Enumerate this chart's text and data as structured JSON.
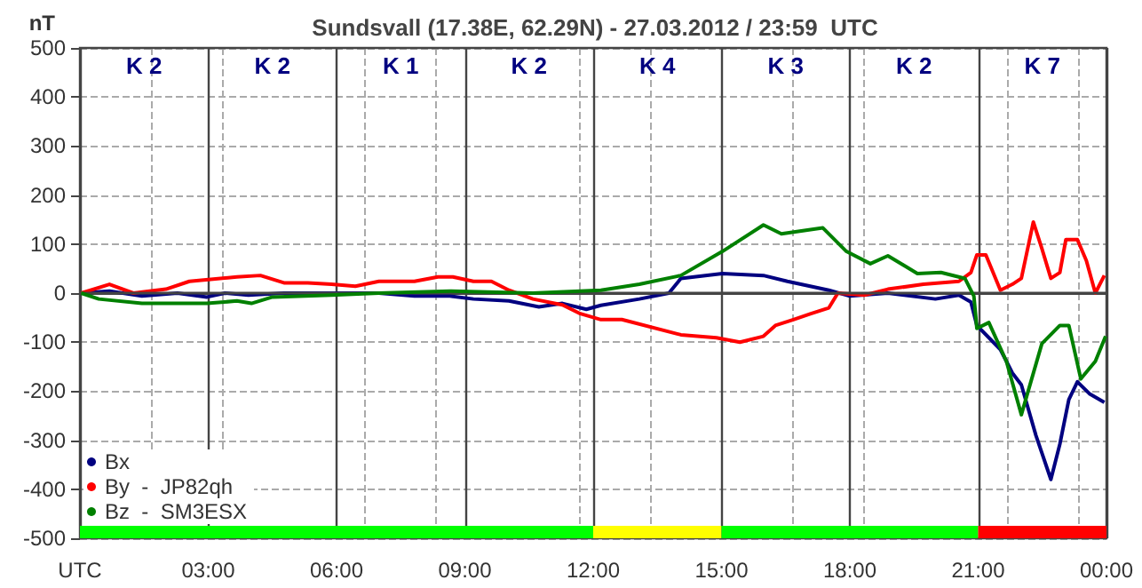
{
  "chart_data": [
    {
      "type": "line",
      "title": "Sundsvall (17.38E, 62.29N) - 27.03.2012 / 23:59  UTC",
      "ylabel": "nT",
      "xlim": [
        0,
        24
      ],
      "xticks": [
        {
          "value": 0,
          "label": null
        },
        {
          "value": 3,
          "label": null
        },
        {
          "value": 6,
          "label": null
        },
        {
          "value": 9,
          "label": null
        },
        {
          "value": 12,
          "label": null
        },
        {
          "value": 15,
          "label": null
        },
        {
          "value": 18,
          "label": null
        },
        {
          "value": 21,
          "label": null
        },
        {
          "value": 24,
          "label": null
        }
      ],
      "ylim": [
        -500,
        500
      ],
      "yticks": [
        -500,
        -400,
        -300,
        -200,
        -100,
        0,
        100,
        200,
        300,
        400,
        500
      ],
      "grid": true,
      "legend": "bottom left",
      "marker": "none",
      "line_style": "solid",
      "tick_labels": "y",
      "annotations": [
        "K 2",
        "K 2",
        "K 1",
        "K 2",
        "K 4",
        "K 3",
        "K 2",
        "K 7"
      ],
      "ref_lines": [
        {
          "axis": "y",
          "value": 0,
          "label": null
        }
      ],
      "series": [
        {
          "name": "Bx",
          "color": "#000080",
          "x": [
            0.03,
            0.69,
            1.45,
            2.28,
            2.97,
            3.39,
            3.94,
            4.77,
            5.88,
            6.99,
            7.82,
            8.65,
            9.2,
            10.03,
            10.73,
            11.28,
            11.84,
            12.18,
            13.08,
            13.77,
            14.05,
            15.02,
            15.98,
            16.54,
            17.51,
            18.0,
            18.89,
            20.0,
            20.55,
            20.83,
            20.97,
            21.52,
            21.8,
            22.01,
            22.35,
            22.7,
            22.91,
            23.12,
            23.32,
            23.6,
            23.95
          ],
          "values": [
            0,
            4,
            -6,
            0,
            -8,
            0,
            -4,
            0,
            0,
            0,
            -6,
            -6,
            -12,
            -16,
            -28,
            -21,
            -33,
            -25,
            -12,
            0,
            30,
            40,
            36,
            24,
            6,
            -6,
            0,
            -12,
            -4,
            -18,
            -66,
            -115,
            -163,
            -187,
            -290,
            -380,
            -308,
            -217,
            -181,
            -205,
            -223
          ]
        },
        {
          "name": "By  -  JP82qh",
          "color": "#ff0000",
          "x": [
            0.03,
            0.69,
            1.25,
            2.01,
            2.56,
            3.67,
            4.22,
            4.77,
            5.33,
            5.88,
            6.44,
            6.99,
            7.82,
            8.37,
            8.72,
            9.2,
            9.62,
            10.03,
            10.59,
            11.28,
            11.7,
            12.18,
            12.67,
            14.05,
            14.88,
            15.43,
            15.98,
            16.26,
            16.68,
            17.09,
            17.51,
            17.72,
            18.34,
            18.89,
            19.72,
            20.55,
            20.83,
            20.97,
            21.18,
            21.52,
            21.8,
            22.01,
            22.29,
            22.49,
            22.7,
            22.91,
            23.05,
            23.32,
            23.53,
            23.74,
            23.95
          ],
          "values": [
            0,
            18,
            0,
            8,
            24,
            33,
            36,
            21,
            21,
            18,
            14,
            24,
            24,
            33,
            33,
            24,
            24,
            6,
            -12,
            -24,
            -42,
            -54,
            -54,
            -85,
            -91,
            -100,
            -88,
            -66,
            -54,
            -42,
            -30,
            0,
            -4,
            8,
            18,
            24,
            42,
            78,
            78,
            6,
            18,
            30,
            145,
            91,
            30,
            42,
            109,
            109,
            66,
            0,
            36
          ]
        },
        {
          "name": "Bz  -  SM3ESX",
          "color": "#008000",
          "x": [
            0.03,
            0.44,
            1.45,
            2.97,
            3.67,
            4.01,
            4.5,
            5.88,
            6.99,
            8.65,
            10.59,
            12.18,
            13.08,
            14.05,
            15.02,
            15.98,
            16.4,
            17.37,
            17.92,
            18.48,
            18.89,
            19.58,
            20.13,
            20.69,
            20.9,
            20.97,
            21.25,
            21.66,
            22.01,
            22.49,
            22.91,
            23.12,
            23.4,
            23.74,
            23.98
          ],
          "values": [
            0,
            -12,
            -21,
            -21,
            -16,
            -21,
            -8,
            -4,
            0,
            4,
            0,
            6,
            18,
            36,
            85,
            139,
            121,
            133,
            85,
            60,
            76,
            40,
            42,
            30,
            -6,
            -72,
            -60,
            -139,
            -248,
            -103,
            -66,
            -66,
            -175,
            -139,
            -88
          ]
        }
      ]
    },
    {
      "type": "bar",
      "orientation": "horizontal",
      "stacked": true,
      "categories": [
        null
      ],
      "xlim": [
        0,
        24
      ],
      "tick_labels": "x",
      "xticks": [
        {
          "value": 0,
          "label": "UTC"
        },
        {
          "value": 3,
          "label": "03:00"
        },
        {
          "value": 6,
          "label": "06:00"
        },
        {
          "value": 9,
          "label": "09:00"
        },
        {
          "value": 12,
          "label": "12:00"
        },
        {
          "value": 15,
          "label": "15:00"
        },
        {
          "value": 18,
          "label": "18:00"
        },
        {
          "value": 21,
          "label": "21:00"
        },
        {
          "value": 24,
          "label": "00:00"
        }
      ],
      "series": [
        {
          "color": "#00ff00",
          "values": [
            12
          ]
        },
        {
          "color": "#ffff00",
          "values": [
            3
          ]
        },
        {
          "color": "#00ff00",
          "values": [
            3
          ]
        },
        {
          "color": "#00ff00",
          "values": [
            3
          ]
        },
        {
          "color": "#ff0000",
          "values": [
            3
          ]
        }
      ]
    }
  ]
}
